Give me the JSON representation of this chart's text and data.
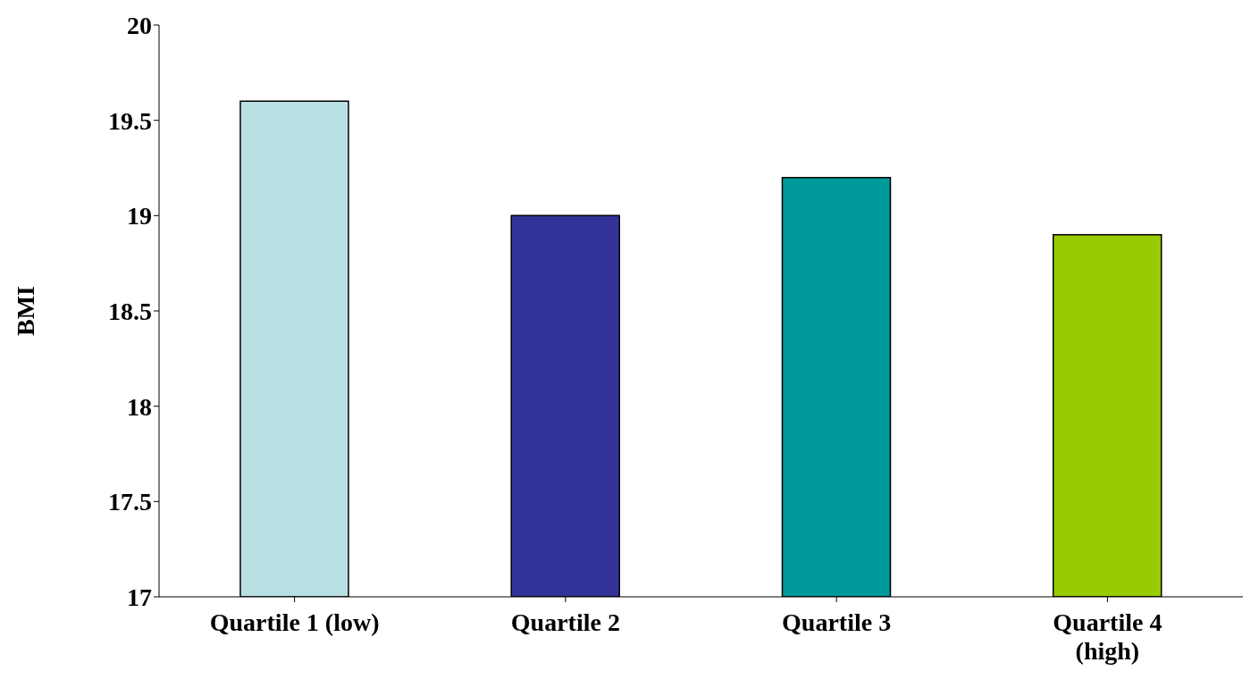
{
  "chart_data": {
    "type": "bar",
    "ylabel": "BMI",
    "categories": [
      "Quartile 1 (low)",
      "Quartile 2",
      "Quartile 3",
      "Quartile 4 (high)"
    ],
    "values": [
      19.6,
      19.0,
      19.2,
      18.9
    ],
    "colors": [
      "#b8e0e3",
      "#333399",
      "#009999",
      "#99cc00"
    ],
    "ylim": [
      17,
      20
    ],
    "yticks": [
      17,
      17.5,
      18,
      18.5,
      19,
      19.5,
      20
    ],
    "grid": false,
    "legend": false
  }
}
